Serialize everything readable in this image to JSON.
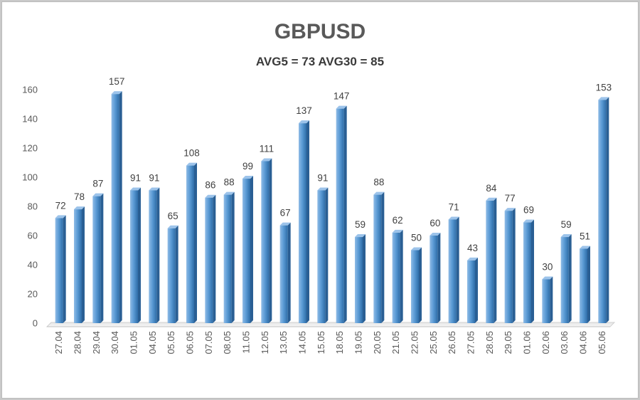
{
  "chart_data": {
    "type": "bar",
    "title": "GBPUSD",
    "subtitle": "AVG5 = 73 AVG30 = 85",
    "categories": [
      "27.04",
      "28.04",
      "29.04",
      "30.04",
      "01.05",
      "04.05",
      "05.05",
      "06.05",
      "07.05",
      "08.05",
      "11.05",
      "12.05",
      "13.05",
      "14.05",
      "15.05",
      "18.05",
      "19.05",
      "20.05",
      "21.05",
      "22.05",
      "25.05",
      "26.05",
      "27.05",
      "28.05",
      "29.05",
      "01.06",
      "02.06",
      "03.06",
      "04.06",
      "05.06"
    ],
    "values": [
      72,
      78,
      87,
      157,
      91,
      91,
      65,
      108,
      86,
      88,
      99,
      111,
      67,
      137,
      91,
      147,
      59,
      88,
      62,
      50,
      60,
      71,
      43,
      84,
      77,
      69,
      30,
      59,
      51,
      153
    ],
    "ylim": [
      0,
      160
    ],
    "yticks": [
      0,
      20,
      40,
      60,
      80,
      100,
      120,
      140,
      160
    ],
    "grid": false,
    "legend": "none",
    "bar_color": "#5b9bd5"
  }
}
